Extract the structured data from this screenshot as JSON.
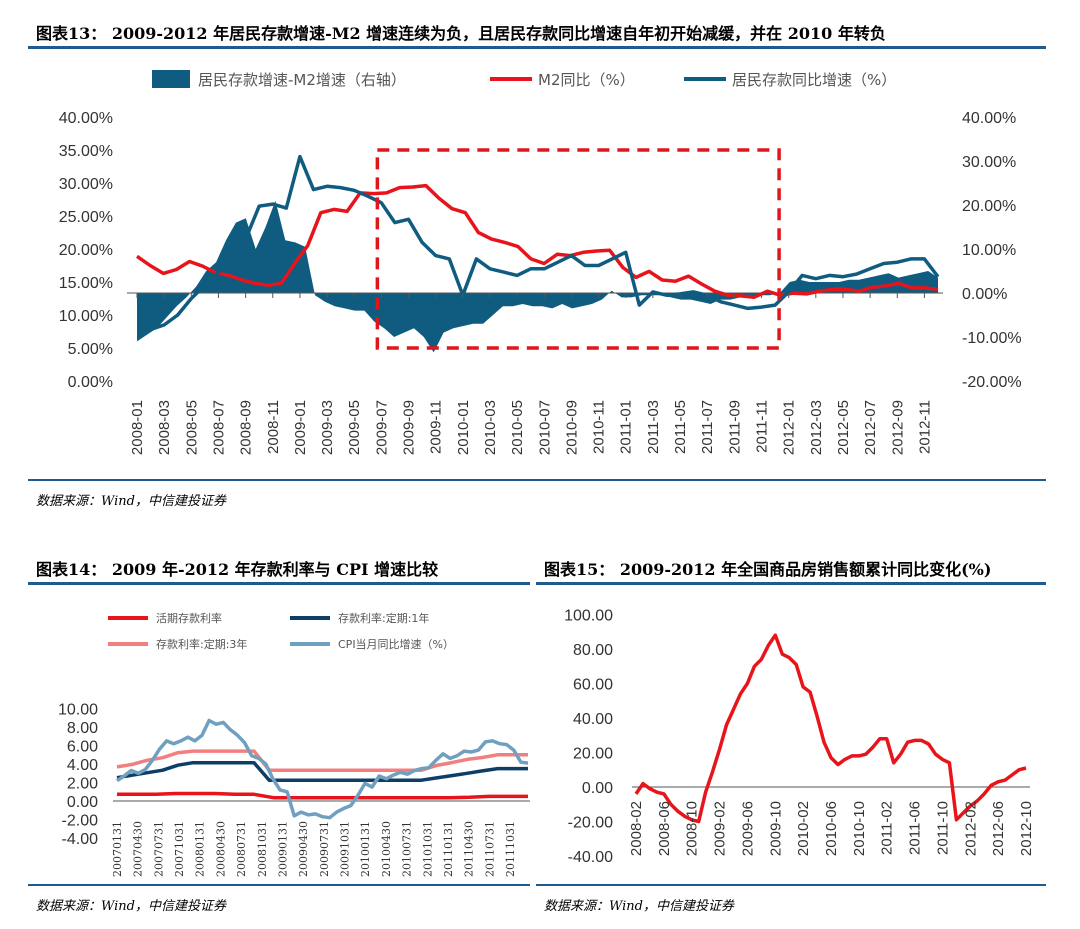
{
  "titles": {
    "fig13": "图表13：  2009-2012 年居民存款增速-M2 增速连续为负，且居民存款同比增速自年初开始减缓，并在 2010 年转负",
    "fig14": "图表14：  2009 年-2012 年存款利率与 CPI 增速比较",
    "fig15": "图表15：  2009-2012 年全国商品房销售额累计同比变化(%)"
  },
  "sources": {
    "fig13": "数据来源：Wind，中信建投证券",
    "fig14": "数据来源：Wind，中信建投证券",
    "fig15": "数据来源：Wind，中信建投证券"
  },
  "colors": {
    "navy": "#1f5b8c",
    "teal": "#0f5c80",
    "red": "#e8141b",
    "pink": "#f08080",
    "darkblue": "#0d3f66",
    "lightblue": "#6fa0bf"
  },
  "chart_data": [
    {
      "id": "fig13",
      "type": "line",
      "legend": [
        "居民存款增速-M2增速（右轴）",
        "M2同比（%）",
        "居民存款同比增速（%）"
      ],
      "x_ticks": [
        "2008-01",
        "2008-03",
        "2008-05",
        "2008-07",
        "2008-09",
        "2008-11",
        "2009-01",
        "2009-03",
        "2009-05",
        "2009-07",
        "2009-09",
        "2009-11",
        "2010-01",
        "2010-03",
        "2010-05",
        "2010-07",
        "2010-09",
        "2010-11",
        "2011-01",
        "2011-03",
        "2011-05",
        "2011-07",
        "2011-09",
        "2011-11",
        "2012-01",
        "2012-03",
        "2012-05",
        "2012-07",
        "2012-09",
        "2012-11"
      ],
      "left_axis": {
        "ylim": [
          0,
          40
        ],
        "ticks": [
          "0.00%",
          "5.00%",
          "10.00%",
          "15.00%",
          "20.00%",
          "25.00%",
          "30.00%",
          "35.00%",
          "40.00%"
        ]
      },
      "right_axis": {
        "ylim": [
          -20,
          40
        ],
        "ticks": [
          "-20.00%",
          "-10.00%",
          "0.00%",
          "10.00%",
          "20.00%",
          "30.00%",
          "40.00%"
        ]
      },
      "series": [
        {
          "name": "居民存款增速-M2增速（右轴）",
          "type": "area",
          "axis": "right",
          "values": [
            -11,
            -9.5,
            -8,
            -5.5,
            -3,
            -1,
            1.5,
            5,
            7,
            12,
            16,
            17,
            10,
            15,
            21,
            12,
            11.5,
            10.5,
            -0.5,
            -2,
            -3,
            -3.5,
            -4,
            -4,
            -6.5,
            -8,
            -10,
            -9,
            -8,
            -10,
            -13.5,
            -9,
            -8,
            -7.5,
            -7,
            -7,
            -5,
            -3,
            -3,
            -2.5,
            -3,
            -3,
            -3.5,
            -2.5,
            -3.5,
            -3,
            -2.5,
            -1.5,
            0.5,
            -1,
            -1,
            -0.5,
            -0.5,
            -0.5,
            -1,
            -1.5,
            -1.5,
            -2,
            -2.5,
            -1.5,
            -1.5,
            -1,
            -1,
            -0.5,
            -0.5,
            0,
            2.5,
            3,
            2.5,
            2.5,
            2.5,
            2.5,
            3,
            3,
            3.5,
            4,
            4.5,
            3.5,
            4,
            4.5,
            5,
            3.5
          ]
        },
        {
          "name": "M2同比（%）",
          "type": "line",
          "axis": "left",
          "values": [
            18.9,
            17.5,
            16.3,
            16.9,
            18.1,
            17.4,
            16.4,
            16.0,
            15.3,
            14.8,
            14.5,
            14.8,
            17.8,
            20.5,
            25.5,
            26.0,
            25.7,
            28.5,
            28.4,
            28.5,
            29.3,
            29.4,
            29.6,
            27.7,
            26.1,
            25.5,
            22.5,
            21.5,
            21.0,
            20.4,
            18.5,
            17.8,
            19.2,
            19.0,
            19.5,
            19.7,
            19.8,
            17.2,
            15.7,
            16.6,
            15.3,
            15.1,
            15.9,
            14.7,
            13.6,
            13.0,
            12.9,
            12.7,
            13.6,
            13.0,
            13.3,
            13.2,
            13.6,
            13.9,
            13.9,
            13.6,
            14.2,
            14.4,
            14.8,
            14.1,
            14.1,
            13.9
          ],
          "x_start_index": 0
        },
        {
          "name": "居民存款同比增速（%）",
          "type": "line",
          "axis": "left",
          "values": [
            7.8,
            7.8,
            8.5,
            10.0,
            12.5,
            14.5,
            16.5,
            18.5,
            21.5,
            26.5,
            26.8,
            26.2,
            34.0,
            29.0,
            29.5,
            29.3,
            28.9,
            28.0,
            27.0,
            24.0,
            24.5,
            21.0,
            19.0,
            18.5,
            13.0,
            18.5,
            17.0,
            16.5,
            16.0,
            17.0,
            17.0,
            18.0,
            19.0,
            17.5,
            17.5,
            18.5,
            19.5,
            11.5,
            13.5,
            13.0,
            13.2,
            13.5,
            13.0,
            12.0,
            11.5,
            11.0,
            11.2,
            11.5,
            13.5,
            16.0,
            15.5,
            16.0,
            15.8,
            16.2,
            17.0,
            17.8,
            18.0,
            18.5,
            18.5,
            15.8
          ]
        },
        {
          "name": "",
          "type": "annotation-box",
          "x_range": [
            "2009-07",
            "2011-12"
          ],
          "right_y_range": [
            -12.5,
            32.5
          ]
        }
      ]
    },
    {
      "id": "fig14",
      "type": "line",
      "legend": [
        "活期存款利率",
        "存款利率:定期:1年",
        "存款利率:定期:3年",
        "CPI当月同比增速（%）"
      ],
      "x_ticks": [
        "20070131",
        "20070430",
        "20070731",
        "20071031",
        "20080131",
        "20080430",
        "20080731",
        "20081031",
        "20090131",
        "20090430",
        "20090731",
        "20091031",
        "20100131",
        "20100430",
        "20100731",
        "20101031",
        "20110131",
        "20110430",
        "20110731",
        "20111031"
      ],
      "ylim": [
        -4,
        10
      ],
      "y_ticks": [
        "-4.00",
        "-2.00",
        "0.00",
        "2.00",
        "4.00",
        "6.00",
        "8.00",
        "10.00"
      ],
      "series": [
        {
          "name": "活期存款利率",
          "values": [
            0.72,
            0.72,
            0.72,
            0.81,
            0.81,
            0.81,
            0.72,
            0.72,
            0.36,
            0.36,
            0.36,
            0.36,
            0.36,
            0.36,
            0.36,
            0.36,
            0.36,
            0.36,
            0.4,
            0.5,
            0.5,
            0.5
          ]
        },
        {
          "name": "存款利率:定期:1年",
          "values": [
            2.52,
            2.79,
            3.06,
            3.33,
            3.87,
            4.14,
            4.14,
            4.14,
            4.14,
            4.14,
            2.25,
            2.25,
            2.25,
            2.25,
            2.25,
            2.25,
            2.25,
            2.25,
            2.25,
            2.25,
            2.25,
            2.5,
            2.75,
            3.0,
            3.25,
            3.5,
            3.5,
            3.5
          ]
        },
        {
          "name": "存款利率:定期:3年",
          "values": [
            3.69,
            3.96,
            4.41,
            4.68,
            5.22,
            5.4,
            5.4,
            5.4,
            5.4,
            5.4,
            3.33,
            3.33,
            3.33,
            3.33,
            3.33,
            3.33,
            3.33,
            3.33,
            3.33,
            3.33,
            3.33,
            3.85,
            4.15,
            4.5,
            4.7,
            5.0,
            5.0,
            5.0
          ]
        },
        {
          "name": "CPI当月同比增速（%）",
          "values": [
            2.2,
            2.7,
            3.3,
            3.0,
            3.4,
            4.4,
            5.6,
            6.5,
            6.2,
            6.5,
            6.9,
            6.5,
            7.1,
            8.7,
            8.3,
            8.5,
            7.7,
            7.1,
            6.3,
            4.9,
            4.6,
            4.0,
            2.4,
            1.2,
            1.0,
            -1.6,
            -1.2,
            -1.5,
            -1.4,
            -1.7,
            -1.8,
            -1.2,
            -0.8,
            -0.5,
            0.6,
            1.9,
            1.5,
            2.7,
            2.4,
            2.8,
            3.1,
            2.9,
            3.3,
            3.5,
            3.6,
            4.4,
            5.1,
            4.6,
            4.9,
            5.4,
            5.3,
            5.5,
            6.4,
            6.5,
            6.2,
            6.1,
            5.5,
            4.2,
            4.1
          ]
        }
      ]
    },
    {
      "id": "fig15",
      "type": "line",
      "x_ticks": [
        "2008-02",
        "2008-06",
        "2008-10",
        "2009-02",
        "2009-06",
        "2009-10",
        "2010-02",
        "2010-06",
        "2010-10",
        "2011-02",
        "2011-06",
        "2011-10",
        "2012-02",
        "2012-06",
        "2012-10"
      ],
      "ylim": [
        -40,
        100
      ],
      "y_ticks": [
        "-40.00",
        "-20.00",
        "0.00",
        "20.00",
        "40.00",
        "60.00",
        "80.00",
        "100.00"
      ],
      "series": [
        {
          "name": "",
          "values": [
            -4,
            2,
            -1,
            -3,
            -4,
            -10,
            -14,
            -17,
            -19,
            -20,
            -3,
            9,
            22,
            36,
            45,
            54,
            60,
            70,
            74,
            82,
            88,
            77,
            75,
            71,
            58,
            55,
            41,
            26,
            17,
            13,
            16,
            18,
            18,
            19,
            23,
            28,
            28,
            14,
            19,
            26,
            27,
            27,
            25,
            19,
            16,
            14,
            -19,
            -15,
            -11,
            -8,
            -4,
            1,
            3,
            4,
            7,
            10,
            11
          ]
        }
      ]
    }
  ]
}
